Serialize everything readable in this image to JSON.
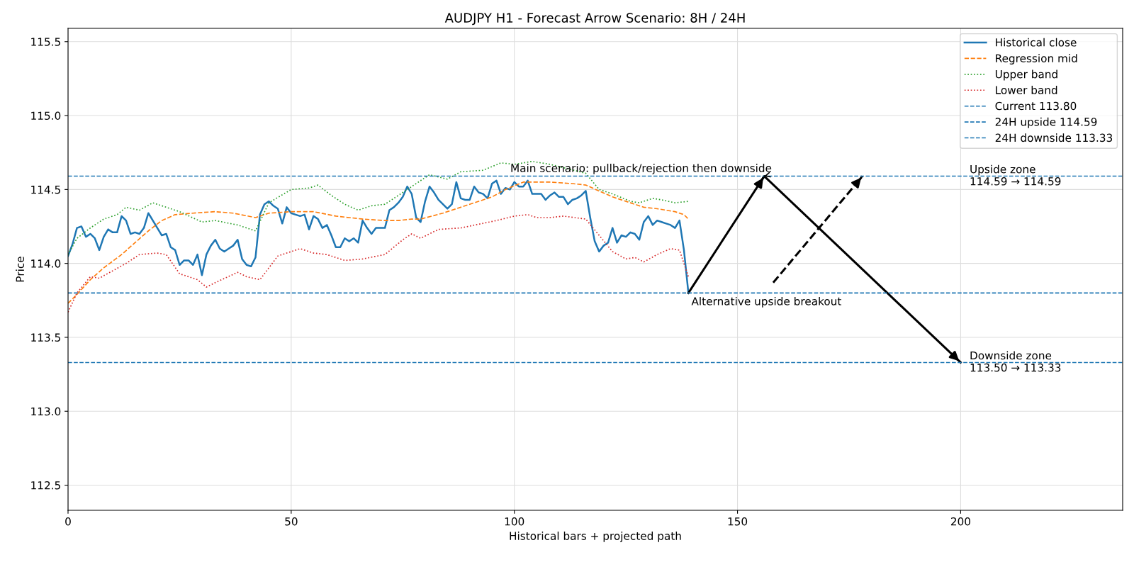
{
  "chart_data": {
    "type": "line",
    "title": "AUDJPY H1 - Forecast Arrow Scenario: 8H / 24H",
    "xlabel": "Historical bars + projected path",
    "ylabel": "Price",
    "series": [
      {
        "name": "Historical close",
        "color": "#1f77b4",
        "line_style": "solid",
        "x": [
          0,
          1,
          2,
          3,
          4,
          5,
          6,
          7,
          8,
          9,
          10,
          11,
          12,
          13,
          14,
          15,
          16,
          17,
          18,
          19,
          20,
          21,
          22,
          23,
          24,
          25,
          26,
          27,
          28,
          29,
          30,
          31,
          32,
          33,
          34,
          35,
          36,
          37,
          38,
          39,
          40,
          41,
          42,
          43,
          44,
          45,
          46,
          47,
          48,
          49,
          50,
          51,
          52,
          53,
          54,
          55,
          56,
          57,
          58,
          59,
          60,
          61,
          62,
          63,
          64,
          65,
          66,
          67,
          68,
          69,
          70,
          71,
          72,
          73,
          74,
          75,
          76,
          77,
          78,
          79,
          80,
          81,
          82,
          83,
          84,
          85,
          86,
          87,
          88,
          89,
          90,
          91,
          92,
          93,
          94,
          95,
          96,
          97,
          98,
          99,
          100,
          101,
          102,
          103,
          104,
          105,
          106,
          107,
          108,
          109,
          110,
          111,
          112,
          113,
          114,
          115,
          116,
          117,
          118,
          119,
          120,
          121,
          122,
          123,
          124,
          125,
          126,
          127,
          128,
          129,
          130,
          131,
          132,
          133,
          134,
          135,
          136,
          137,
          138,
          139
        ],
        "values": [
          114.05,
          114.13,
          114.24,
          114.25,
          114.18,
          114.2,
          114.17,
          114.09,
          114.18,
          114.23,
          114.21,
          114.21,
          114.32,
          114.29,
          114.2,
          114.21,
          114.2,
          114.24,
          114.34,
          114.29,
          114.24,
          114.19,
          114.2,
          114.11,
          114.09,
          113.99,
          114.02,
          114.02,
          113.99,
          114.06,
          113.92,
          114.06,
          114.12,
          114.16,
          114.1,
          114.08,
          114.1,
          114.12,
          114.16,
          114.03,
          113.99,
          113.98,
          114.04,
          114.33,
          114.4,
          114.42,
          114.39,
          114.37,
          114.27,
          114.38,
          114.34,
          114.33,
          114.32,
          114.33,
          114.23,
          114.32,
          114.3,
          114.24,
          114.26,
          114.19,
          114.11,
          114.11,
          114.17,
          114.15,
          114.17,
          114.14,
          114.29,
          114.24,
          114.2,
          114.24,
          114.24,
          114.24,
          114.36,
          114.38,
          114.41,
          114.45,
          114.52,
          114.47,
          114.31,
          114.28,
          114.42,
          114.52,
          114.48,
          114.43,
          114.4,
          114.37,
          114.4,
          114.55,
          114.44,
          114.43,
          114.43,
          114.52,
          114.48,
          114.47,
          114.44,
          114.54,
          114.56,
          114.47,
          114.51,
          114.5,
          114.55,
          114.52,
          114.52,
          114.56,
          114.47,
          114.47,
          114.47,
          114.43,
          114.46,
          114.48,
          114.45,
          114.45,
          114.4,
          114.43,
          114.44,
          114.46,
          114.49,
          114.31,
          114.15,
          114.08,
          114.12,
          114.14,
          114.24,
          114.14,
          114.19,
          114.18,
          114.21,
          114.2,
          114.16,
          114.28,
          114.32,
          114.26,
          114.29,
          114.28,
          114.27,
          114.26,
          114.24,
          114.29,
          114.09,
          113.8
        ]
      },
      {
        "name": "Regression mid",
        "color": "#ff7f0e",
        "line_style": "dashed",
        "x": [
          0,
          2,
          5,
          8,
          12,
          15,
          18,
          21,
          24,
          28,
          33,
          37,
          42,
          45,
          50,
          55,
          60,
          66,
          71,
          74,
          77,
          79,
          84,
          89,
          95,
          98,
          102,
          108,
          113,
          116,
          119,
          122,
          126,
          129,
          132,
          136,
          138,
          139
        ],
        "values": [
          113.73,
          113.79,
          113.89,
          113.97,
          114.06,
          114.14,
          114.22,
          114.29,
          114.33,
          114.34,
          114.35,
          114.34,
          114.31,
          114.34,
          114.35,
          114.35,
          114.32,
          114.3,
          114.29,
          114.29,
          114.3,
          114.3,
          114.34,
          114.39,
          114.45,
          114.5,
          114.55,
          114.55,
          114.54,
          114.53,
          114.49,
          114.45,
          114.41,
          114.38,
          114.37,
          114.35,
          114.33,
          114.3
        ]
      },
      {
        "name": "Upper band",
        "color": "#2ca02c",
        "line_style": "dotted",
        "x": [
          0,
          2,
          5,
          8,
          11,
          13,
          16,
          19,
          22,
          25,
          30,
          33,
          38,
          42,
          45,
          50,
          54,
          56,
          59,
          62,
          65,
          68,
          71,
          75,
          78,
          81,
          85,
          88,
          93,
          97,
          100,
          104,
          108,
          112,
          116,
          119,
          122,
          126,
          128,
          131,
          133,
          136,
          139
        ],
        "values": [
          114.06,
          114.17,
          114.24,
          114.3,
          114.33,
          114.38,
          114.36,
          114.41,
          114.38,
          114.35,
          114.28,
          114.29,
          114.26,
          114.22,
          114.41,
          114.5,
          114.51,
          114.53,
          114.46,
          114.4,
          114.36,
          114.39,
          114.4,
          114.48,
          114.54,
          114.6,
          114.57,
          114.62,
          114.63,
          114.68,
          114.67,
          114.69,
          114.67,
          114.64,
          114.61,
          114.5,
          114.47,
          114.42,
          114.41,
          114.44,
          114.43,
          114.41,
          114.42
        ]
      },
      {
        "name": "Lower band",
        "color": "#d62728",
        "line_style": "dotted",
        "x": [
          0,
          2,
          5,
          7,
          13,
          16,
          20,
          22,
          25,
          29,
          31,
          33,
          38,
          40,
          43,
          47,
          52,
          55,
          58,
          62,
          66,
          71,
          75,
          77,
          79,
          83,
          88,
          96,
          100,
          103,
          105,
          108,
          111,
          116,
          119,
          122,
          125,
          127,
          129,
          132,
          135,
          137,
          139
        ],
        "values": [
          113.67,
          113.8,
          113.91,
          113.9,
          114.0,
          114.06,
          114.07,
          114.06,
          113.93,
          113.89,
          113.84,
          113.87,
          113.94,
          113.91,
          113.89,
          114.05,
          114.1,
          114.07,
          114.06,
          114.02,
          114.03,
          114.06,
          114.16,
          114.2,
          114.17,
          114.23,
          114.24,
          114.29,
          114.32,
          114.33,
          114.31,
          114.31,
          114.32,
          114.3,
          114.19,
          114.08,
          114.03,
          114.04,
          114.01,
          114.06,
          114.1,
          114.09,
          113.91
        ]
      },
      {
        "color": "#000000",
        "line_style": "solid",
        "x": [
          139,
          156,
          200
        ],
        "values": [
          113.8,
          114.59,
          113.33
        ]
      },
      {
        "color": "#000000",
        "line_style": "dashed",
        "x": [
          158,
          178
        ],
        "values": [
          113.87,
          114.59
        ]
      }
    ],
    "ref_lines": [
      {
        "axis": "y",
        "value": 113.8,
        "label": "Current 113.80",
        "color": "#1f77b4",
        "line_style": "dashed"
      },
      {
        "axis": "y",
        "value": 114.59,
        "label": "24H upside 114.59",
        "color": "#1f77b4",
        "line_style": "dashed"
      },
      {
        "axis": "y",
        "value": 113.33,
        "label": "24H downside 113.33",
        "color": "#1f77b4",
        "line_style": "dashed"
      }
    ],
    "annotations": [
      {
        "text": "Main scenario: pullback/rejection then downside",
        "x": 156,
        "y": 114.59
      },
      {
        "text": "Alternative upside breakout",
        "x": 139,
        "y": 113.8
      },
      {
        "text": "Upside zone\n114.59 → 114.59",
        "x": 202,
        "y": 114.59
      },
      {
        "text": "Downside zone\n113.50 → 113.33",
        "x": 202,
        "y": 113.33
      }
    ],
    "xlim": [
      0,
      236.3
    ],
    "ylim": [
      112.33,
      115.59
    ],
    "xticks": [
      0,
      50,
      100,
      150,
      200
    ],
    "yticks": [
      {
        "value": 112.5,
        "label": "112.5"
      },
      {
        "value": 113,
        "label": "113.0"
      },
      {
        "value": 113.5,
        "label": "113.5"
      },
      {
        "value": 114,
        "label": "114.0"
      },
      {
        "value": 114.5,
        "label": "114.5"
      },
      {
        "value": 115,
        "label": "115.0"
      },
      {
        "value": 115.5,
        "label": "115.5"
      }
    ],
    "grid": true,
    "legend": "top right",
    "marker": "none"
  }
}
